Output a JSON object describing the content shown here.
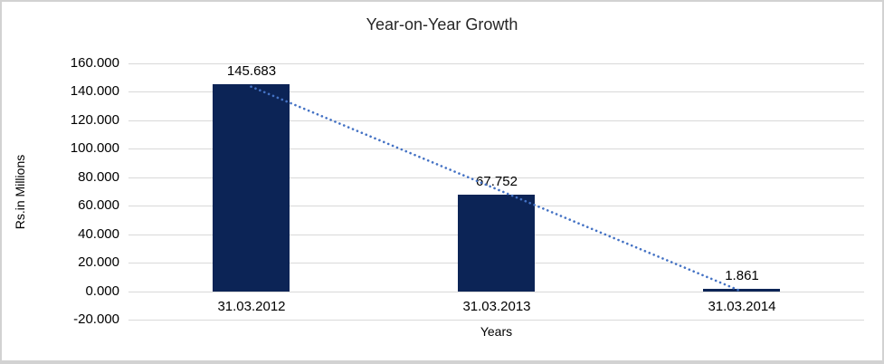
{
  "window": {
    "background_color": "#ffffff",
    "border_color": "#d2d2d2"
  },
  "chart_data": {
    "type": "bar",
    "title": "Year-on-Year Growth",
    "xlabel": "Years",
    "ylabel": "Rs.in Millions",
    "categories": [
      "31.03.2012",
      "31.03.2013",
      "31.03.2014"
    ],
    "values": [
      145.683,
      67.752,
      1.861
    ],
    "data_labels": [
      "145.683",
      "67.752",
      "1.861"
    ],
    "ylim": [
      -20,
      160
    ],
    "ytick_step": 20,
    "ytick_labels": [
      "160.000",
      "140.000",
      "120.000",
      "100.000",
      "80.000",
      "60.000",
      "40.000",
      "20.000",
      "0.000",
      "-20.000"
    ],
    "grid": true,
    "legend": false,
    "bar_color": "#0c2456",
    "gridline_color": "#d9d9d9",
    "text_color": "#000000",
    "title_color": "#262626",
    "trendline": {
      "type": "linear",
      "style": "dotted",
      "color": "#4472c4"
    }
  }
}
